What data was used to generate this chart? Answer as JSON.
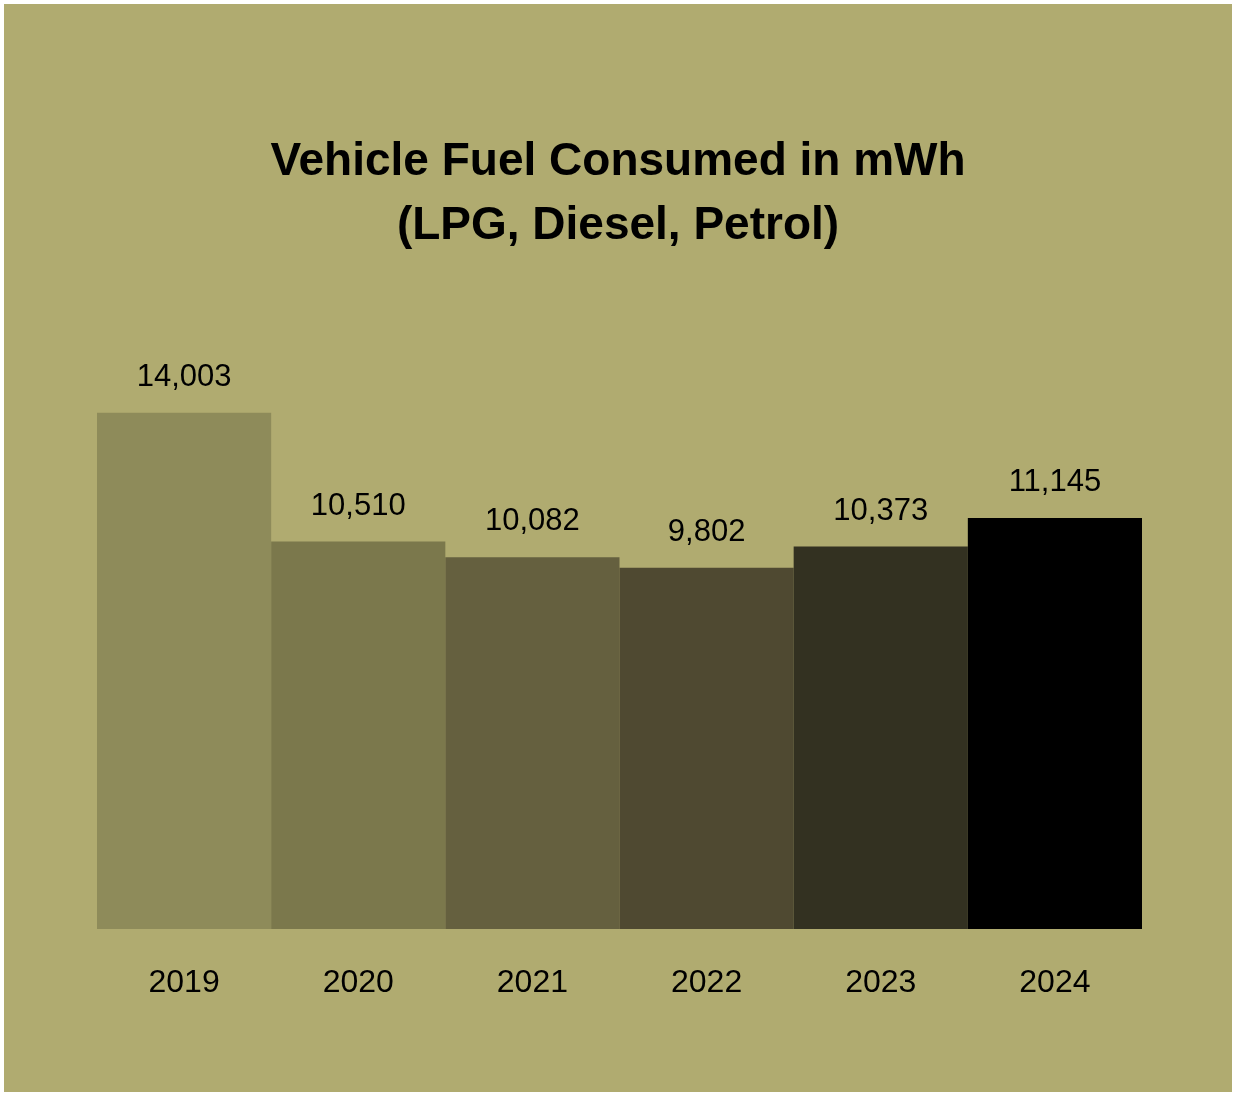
{
  "chart_data": {
    "type": "bar",
    "title": "Vehicle Fuel Consumed in mWh\n(LPG, Diesel, Petrol)",
    "categories": [
      "2019",
      "2020",
      "2021",
      "2022",
      "2023",
      "2024"
    ],
    "values": [
      14003,
      10510,
      10082,
      9802,
      10373,
      11145
    ],
    "colors": [
      "#8e8b5a",
      "#7b784c",
      "#65603f",
      "#4f4931",
      "#333121",
      "#000000"
    ],
    "value_labels": [
      "14,003",
      "10,510",
      "10,082",
      "9,802",
      "10,373",
      "11,145"
    ],
    "tick_labels": "x"
  }
}
